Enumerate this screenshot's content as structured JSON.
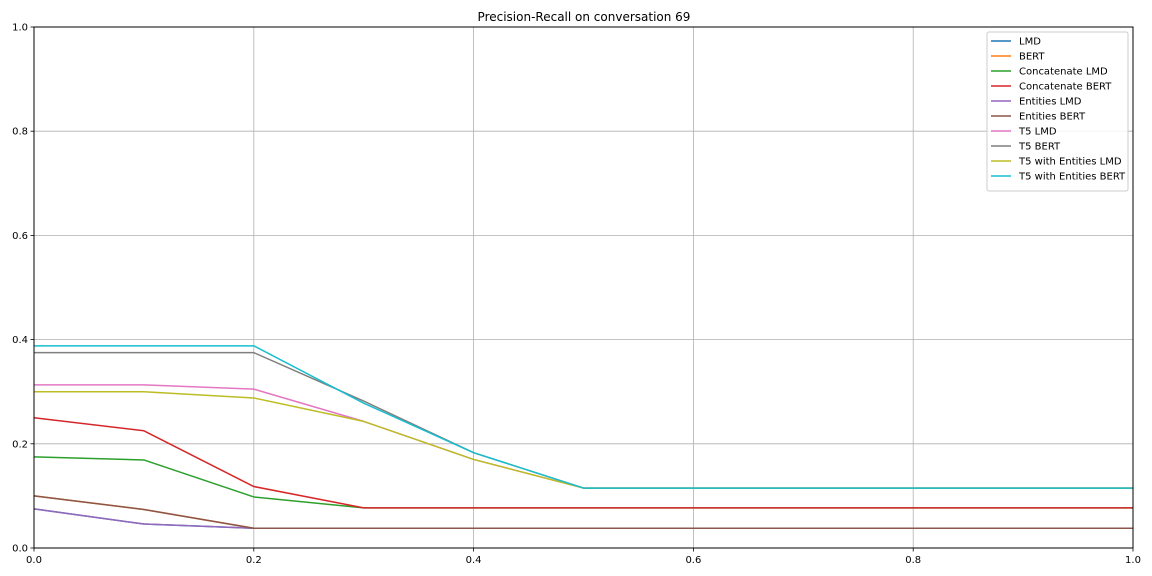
{
  "chart_data": {
    "type": "line",
    "title": "Precision-Recall on conversation 69",
    "xlabel": "",
    "ylabel": "",
    "xlim": [
      0,
      1
    ],
    "ylim": [
      0,
      1
    ],
    "grid": true,
    "legend_position": "top-right",
    "x_ticks": [
      "0.0",
      "0.2",
      "0.4",
      "0.6",
      "0.8",
      "1.0"
    ],
    "y_ticks": [
      "0.0",
      "0.2",
      "0.4",
      "0.6",
      "0.8",
      "1.0"
    ],
    "x": [
      0.0,
      0.1,
      0.2,
      0.3,
      0.4,
      0.5,
      0.6,
      0.7,
      0.8,
      0.9,
      1.0
    ],
    "series": [
      {
        "name": "LMD",
        "color": "#1f77b4",
        "values": [
          0.075,
          0.046,
          0.038,
          0.038,
          0.038,
          0.038,
          0.038,
          0.038,
          0.038,
          0.038,
          0.038
        ]
      },
      {
        "name": "BERT",
        "color": "#ff7f0e",
        "values": [
          0.1,
          0.074,
          0.038,
          0.038,
          0.038,
          0.038,
          0.038,
          0.038,
          0.038,
          0.038,
          0.038
        ]
      },
      {
        "name": "Concatenate LMD",
        "color": "#2ca02c",
        "values": [
          0.175,
          0.169,
          0.098,
          0.077,
          0.077,
          0.077,
          0.077,
          0.077,
          0.077,
          0.077,
          0.077
        ]
      },
      {
        "name": "Concatenate BERT",
        "color": "#d62728",
        "values": [
          0.25,
          0.225,
          0.118,
          0.077,
          0.077,
          0.077,
          0.077,
          0.077,
          0.077,
          0.077,
          0.077
        ]
      },
      {
        "name": "Entities LMD",
        "color": "#9467bd",
        "values": [
          0.075,
          0.046,
          0.038,
          0.038,
          0.038,
          0.038,
          0.038,
          0.038,
          0.038,
          0.038,
          0.038
        ]
      },
      {
        "name": "Entities BERT",
        "color": "#8c564b",
        "values": [
          0.1,
          0.074,
          0.038,
          0.038,
          0.038,
          0.038,
          0.038,
          0.038,
          0.038,
          0.038,
          0.038
        ]
      },
      {
        "name": "T5 LMD",
        "color": "#e377c2",
        "values": [
          0.313,
          0.313,
          0.305,
          0.243,
          0.17,
          0.115,
          0.115,
          0.115,
          0.115,
          0.115,
          0.115
        ]
      },
      {
        "name": "T5 BERT",
        "color": "#7f7f7f",
        "values": [
          0.375,
          0.375,
          0.375,
          0.282,
          0.183,
          0.115,
          0.115,
          0.115,
          0.115,
          0.115,
          0.115
        ]
      },
      {
        "name": "T5 with Entities LMD",
        "color": "#bcbd22",
        "values": [
          0.3,
          0.3,
          0.288,
          0.243,
          0.17,
          0.115,
          0.115,
          0.115,
          0.115,
          0.115,
          0.115
        ]
      },
      {
        "name": "T5 with Entities BERT",
        "color": "#17becf",
        "values": [
          0.388,
          0.388,
          0.388,
          0.278,
          0.183,
          0.115,
          0.115,
          0.115,
          0.115,
          0.115,
          0.115
        ]
      }
    ]
  }
}
